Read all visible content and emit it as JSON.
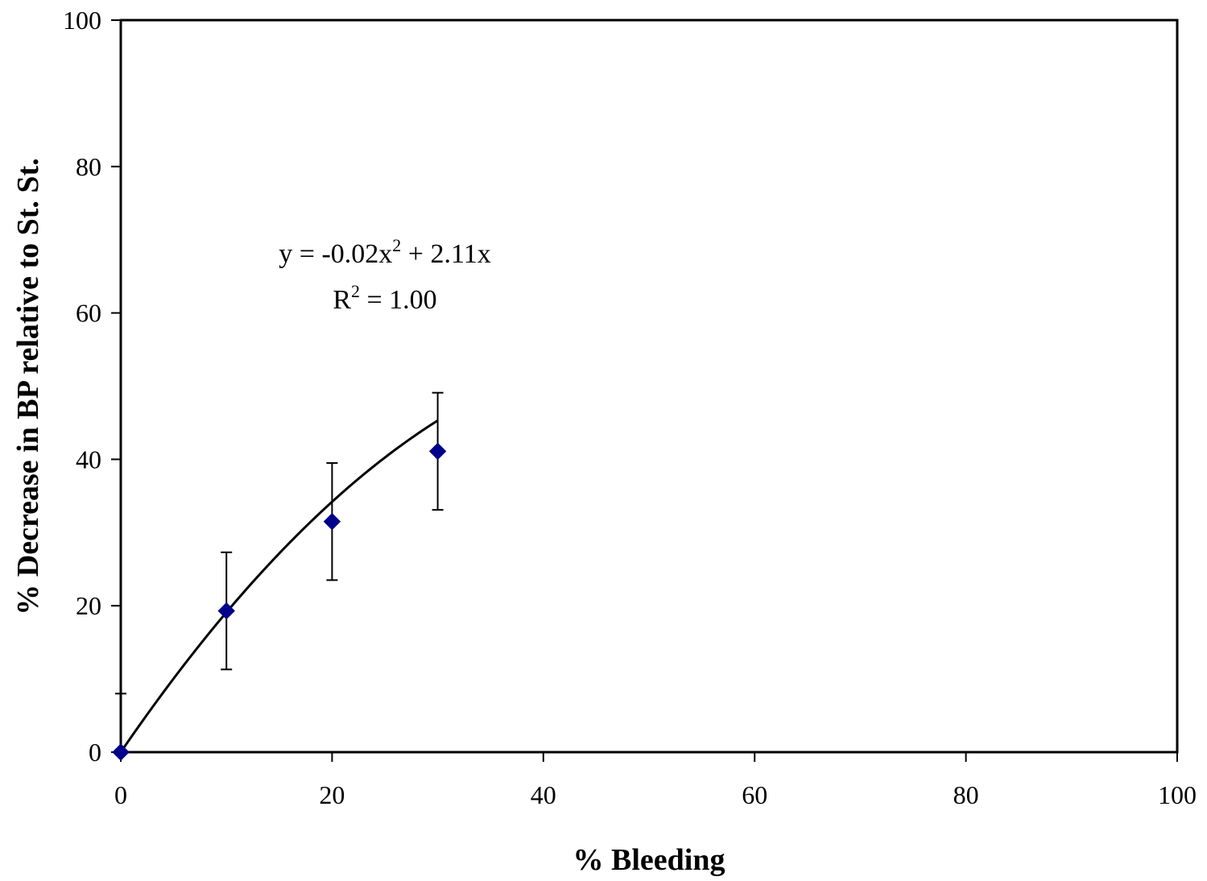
{
  "chart_data": {
    "type": "scatter",
    "title": "",
    "xlabel": "% Bleeding",
    "ylabel": "% Decrease in BP relative to St. St.",
    "xlim": [
      0,
      100
    ],
    "ylim": [
      0,
      100
    ],
    "xticks": [
      0,
      20,
      40,
      60,
      80,
      100
    ],
    "yticks": [
      0,
      20,
      40,
      60,
      80,
      100
    ],
    "grid": false,
    "legend": "none",
    "series": [
      {
        "x": [
          0,
          10,
          20,
          30
        ],
        "y": [
          0,
          19.3,
          31.5,
          41.1
        ],
        "error": [
          8,
          8,
          8,
          8
        ],
        "marker": "diamond",
        "color": "#00008b"
      }
    ],
    "trendline": {
      "type": "polynomial",
      "coefficients": [
        -0.02,
        2.11,
        0
      ],
      "x_range": [
        0,
        30
      ],
      "color": "#000000"
    },
    "annotations": {
      "equation": {
        "prefix": "y = -0.02x",
        "sup": "2",
        "suffix": " + 2.11x"
      },
      "r_squared": {
        "prefix": "R",
        "sup": "2",
        "suffix": " = 1.00"
      }
    }
  }
}
